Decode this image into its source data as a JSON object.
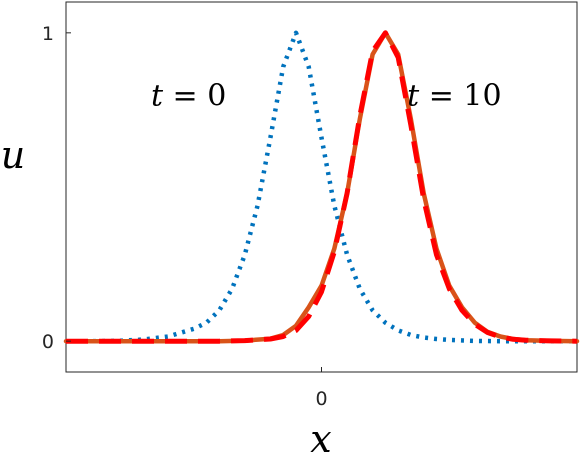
{
  "chart_data": {
    "type": "line",
    "title": "",
    "xlabel": "x",
    "ylabel": "u",
    "xlim": [
      -10,
      10
    ],
    "ylim": [
      -0.1,
      1.1
    ],
    "xticks": [
      0
    ],
    "xtick_labels": [
      "0"
    ],
    "yticks": [
      0,
      1
    ],
    "ytick_labels": [
      "0",
      "1"
    ],
    "grid": false,
    "legend": "none",
    "annotations": [
      {
        "var": "t",
        "rest": " = 0",
        "x": -5.2,
        "y": 0.8
      },
      {
        "var": "t",
        "rest": " = 10",
        "x": 5.2,
        "y": 0.8
      }
    ],
    "series": [
      {
        "style": "dotted",
        "color": "#0072BD",
        "x": [
          -10,
          -9,
          -8,
          -7,
          -6,
          -5,
          -4.5,
          -4,
          -3.5,
          -3,
          -2.5,
          -2,
          -1.5,
          -1,
          -0.5,
          0,
          0.5,
          1,
          1.5,
          2,
          2.5,
          3,
          3.5,
          4,
          4.5,
          5,
          6,
          7,
          8,
          9,
          10
        ],
        "y": [
          0.0,
          0.0,
          0.001,
          0.005,
          0.015,
          0.04,
          0.06,
          0.1,
          0.17,
          0.28,
          0.44,
          0.66,
          0.89,
          1.0,
          0.89,
          0.66,
          0.44,
          0.28,
          0.17,
          0.1,
          0.06,
          0.035,
          0.02,
          0.012,
          0.007,
          0.004,
          0.001,
          0.0,
          0.0,
          0.0,
          0.0
        ]
      },
      {
        "style": "solid",
        "color": "#D95319",
        "x": [
          -10,
          -9,
          -8,
          -7,
          -6,
          -5,
          -4,
          -3,
          -2,
          -1.5,
          -1,
          -0.5,
          0,
          0.5,
          1,
          1.5,
          2,
          2.5,
          3,
          3.5,
          4,
          4.5,
          5,
          5.5,
          6,
          6.5,
          7,
          7.5,
          8,
          9,
          10
        ],
        "y": [
          0.0,
          0.0,
          0.0,
          0.0,
          0.0,
          0.0,
          0.0,
          0.002,
          0.008,
          0.02,
          0.05,
          0.11,
          0.18,
          0.3,
          0.48,
          0.72,
          0.93,
          1.0,
          0.93,
          0.72,
          0.48,
          0.3,
          0.18,
          0.11,
          0.06,
          0.03,
          0.015,
          0.007,
          0.003,
          0.001,
          0.0
        ]
      },
      {
        "style": "dashed",
        "color": "#FF0000",
        "x": [
          -10,
          -9,
          -8,
          -7,
          -6,
          -5,
          -4,
          -3,
          -2,
          -1.5,
          -1,
          -0.5,
          0,
          0.5,
          1,
          1.5,
          2,
          2.5,
          3,
          3.5,
          4,
          4.5,
          5,
          5.5,
          6,
          6.5,
          7,
          7.5,
          8,
          9,
          10
        ],
        "y": [
          0.0,
          0.0,
          0.0,
          0.0,
          0.0,
          0.0,
          0.0,
          0.002,
          0.007,
          0.015,
          0.035,
          0.08,
          0.16,
          0.29,
          0.48,
          0.73,
          0.94,
          1.0,
          0.92,
          0.7,
          0.46,
          0.28,
          0.17,
          0.1,
          0.055,
          0.028,
          0.014,
          0.006,
          0.003,
          0.001,
          0.0
        ]
      }
    ]
  }
}
